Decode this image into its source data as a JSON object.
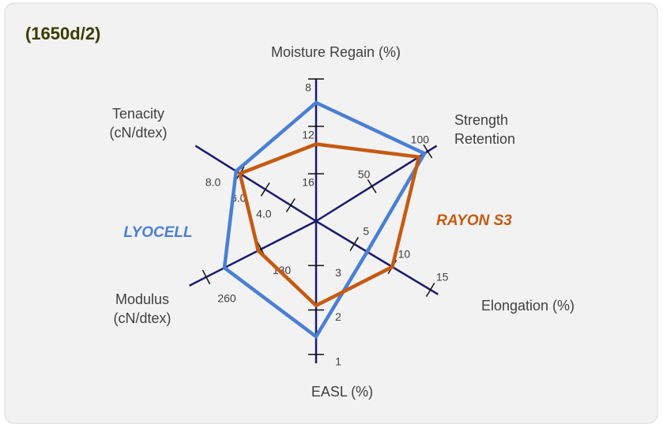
{
  "chart_data": {
    "type": "radar",
    "title": "(1650d/2)",
    "axes": [
      {
        "name": [
          "Moisture Regain (%)"
        ],
        "lim": [
          20,
          8
        ],
        "ticks": [
          8,
          12,
          16
        ]
      },
      {
        "name": [
          "Strength",
          "Retention"
        ],
        "lim": [
          0,
          108
        ],
        "ticks": [
          50,
          100
        ]
      },
      {
        "name": [
          "Elongation (%)"
        ],
        "lim": [
          0,
          16
        ],
        "ticks": [
          5,
          10,
          15
        ]
      },
      {
        "name": [
          "EASL (%)"
        ],
        "lim": [
          4,
          0.8
        ],
        "ticks": [
          1,
          2,
          3
        ]
      },
      {
        "name": [
          "Modulus",
          "(cN/dtex)"
        ],
        "lim": [
          0,
          300
        ],
        "ticks": [
          130,
          260
        ]
      },
      {
        "name": [
          "Tenacity",
          "(cN/dtex)"
        ],
        "lim": [
          2,
          11.5
        ],
        "ticks": [
          {
            "value": 4,
            "label": "4.0"
          },
          {
            "value": 6,
            "label": "6.0"
          },
          {
            "value": 8,
            "label": "8.0"
          }
        ]
      }
    ],
    "series": [
      {
        "name": "LYOCELL",
        "color": "#4a7fd4",
        "values": [
          10,
          97,
          6.7,
          1.4,
          217,
          8.3
        ]
      },
      {
        "name": "RAYON S3",
        "color": "#c55a11",
        "values": [
          13.5,
          92,
          10,
          2.1,
          137,
          8.0
        ]
      }
    ]
  }
}
